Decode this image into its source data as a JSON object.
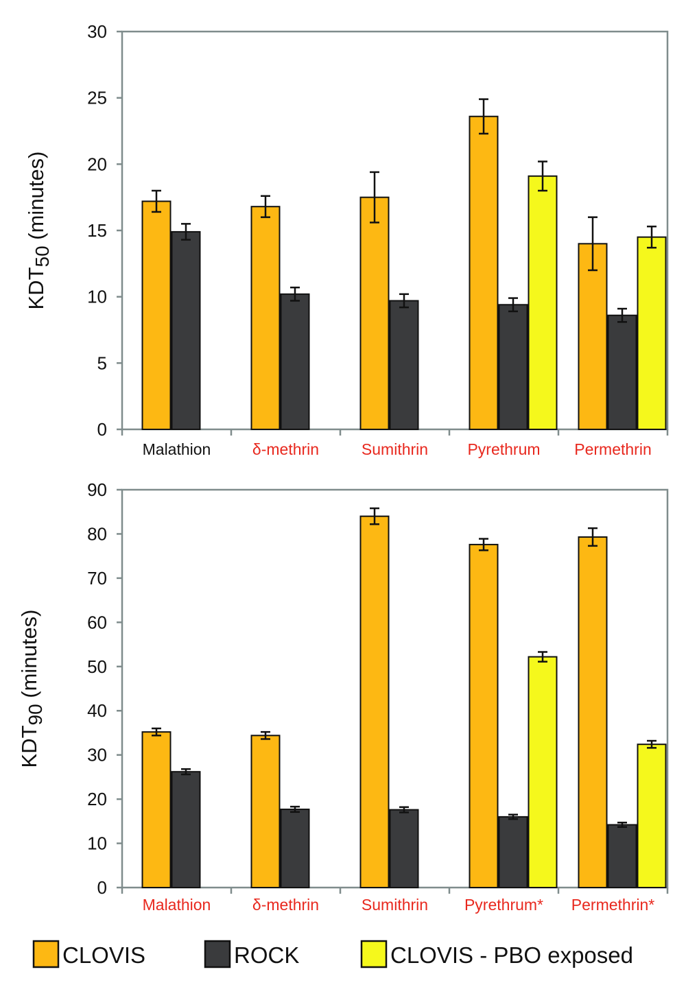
{
  "colors": {
    "clovis": "#FDB813",
    "rock": "#3A3B3D",
    "pbo": "#F5F81C",
    "axis": "#7F8C8C",
    "bar_stroke": "#111111",
    "label_black": "#111111",
    "label_red": "#E8281E"
  },
  "legend": {
    "items": [
      {
        "label": "CLOVIS",
        "series": "clovis"
      },
      {
        "label": "ROCK",
        "series": "rock"
      },
      {
        "label": "CLOVIS - PBO exposed",
        "series": "pbo"
      }
    ]
  },
  "chart_data": [
    {
      "type": "bar",
      "ylabel_main": "KDT",
      "ylabel_sub": "50",
      "ylabel_rest": " (minutes)",
      "ylim": [
        0,
        30
      ],
      "yticks": [
        0,
        5,
        10,
        15,
        20,
        25,
        30
      ],
      "categories": [
        "Malathion",
        "δ-methrin",
        "Sumithrin",
        "Pyrethrum",
        "Permethrin"
      ],
      "category_label_colors": [
        "label_black",
        "label_red",
        "label_red",
        "label_red",
        "label_red"
      ],
      "series": [
        {
          "name": "CLOVIS",
          "key": "clovis",
          "values": [
            17.2,
            16.8,
            17.5,
            23.6,
            14.0
          ],
          "errors": [
            0.8,
            0.8,
            1.9,
            1.3,
            2.0
          ]
        },
        {
          "name": "ROCK",
          "key": "rock",
          "values": [
            14.9,
            10.2,
            9.7,
            9.4,
            8.6
          ],
          "errors": [
            0.6,
            0.5,
            0.5,
            0.5,
            0.5
          ]
        },
        {
          "name": "CLOVIS - PBO exposed",
          "key": "pbo",
          "values": [
            null,
            null,
            null,
            19.1,
            14.5
          ],
          "errors": [
            null,
            null,
            null,
            1.1,
            0.8
          ]
        }
      ]
    },
    {
      "type": "bar",
      "ylabel_main": "KDT",
      "ylabel_sub": "90",
      "ylabel_rest": " (minutes)",
      "ylim": [
        0,
        90
      ],
      "yticks": [
        0,
        10,
        20,
        30,
        40,
        50,
        60,
        70,
        80,
        90
      ],
      "categories": [
        "Malathion",
        "δ-methrin",
        "Sumithrin",
        "Pyrethrum*",
        "Permethrin*"
      ],
      "category_label_colors": [
        "label_red",
        "label_red",
        "label_red",
        "label_red",
        "label_red"
      ],
      "series": [
        {
          "name": "CLOVIS",
          "key": "clovis",
          "values": [
            35.2,
            34.4,
            84.0,
            77.6,
            79.3
          ],
          "errors": [
            0.8,
            0.8,
            1.8,
            1.3,
            2.0
          ]
        },
        {
          "name": "ROCK",
          "key": "rock",
          "values": [
            26.2,
            17.7,
            17.6,
            16.0,
            14.2
          ],
          "errors": [
            0.6,
            0.6,
            0.6,
            0.5,
            0.5
          ]
        },
        {
          "name": "CLOVIS - PBO exposed",
          "key": "pbo",
          "values": [
            null,
            null,
            null,
            52.2,
            32.4
          ],
          "errors": [
            null,
            null,
            null,
            1.1,
            0.8
          ]
        }
      ]
    }
  ]
}
